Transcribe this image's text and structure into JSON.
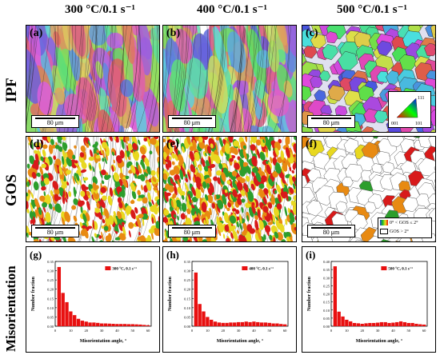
{
  "columns": [
    {
      "title": "300 °C/0.1 s⁻¹"
    },
    {
      "title": "400 °C/0.1 s⁻¹"
    },
    {
      "title": "500 °C/0.1 s⁻¹"
    }
  ],
  "rows": [
    {
      "label": "IPF"
    },
    {
      "label": "GOS"
    },
    {
      "label": "Misorientation"
    }
  ],
  "panels": {
    "ipf": [
      {
        "letter": "(a)",
        "scale": "80 μm"
      },
      {
        "letter": "(b)",
        "scale": "80 μm"
      },
      {
        "letter": "(c)",
        "scale": "80 μm",
        "triangle": {
          "top": "111",
          "left": "001",
          "right": "101"
        }
      }
    ],
    "gos": [
      {
        "letter": "(d)",
        "scale": "80 μm"
      },
      {
        "letter": "(e)",
        "scale": "80 μm"
      },
      {
        "letter": "(f)",
        "scale": "80 μm",
        "legend": {
          "row1": "0° < GOS ≤ 2°",
          "row2": "GOS > 2°"
        }
      }
    ]
  },
  "colors": {
    "bar": "#e81010",
    "gos_green": "#2c9e2c",
    "gos_orange": "#e88a12",
    "gos_red": "#d81a1a"
  },
  "chart_data": [
    {
      "type": "bar",
      "letter": "(g)",
      "legend": "300 °C, 0.1 s⁻¹",
      "xlabel": "Misorientation angle, °",
      "ylabel": "Number fraction",
      "ylim": [
        0,
        0.35
      ],
      "yticks": [
        "0.00",
        "0.05",
        "0.10",
        "0.15",
        "0.20",
        "0.25",
        "0.30",
        "0.35"
      ],
      "xlim": [
        0,
        62
      ],
      "xticks": [
        "0",
        "10",
        "20",
        "30",
        "40",
        "50",
        "60"
      ],
      "x": [
        2.5,
        5,
        7.5,
        10,
        12.5,
        15,
        17.5,
        20,
        22.5,
        25,
        27.5,
        30,
        32.5,
        35,
        37.5,
        40,
        42.5,
        45,
        47.5,
        50,
        52.5,
        55,
        57.5,
        60
      ],
      "values": [
        0.32,
        0.18,
        0.13,
        0.08,
        0.06,
        0.04,
        0.03,
        0.025,
        0.02,
        0.02,
        0.018,
        0.015,
        0.015,
        0.014,
        0.013,
        0.012,
        0.012,
        0.012,
        0.011,
        0.011,
        0.01,
        0.009,
        0.007,
        0.005
      ]
    },
    {
      "type": "bar",
      "letter": "(h)",
      "legend": "400 °C, 0.1 s⁻¹",
      "xlabel": "Misorientation angle, °",
      "ylabel": "Number fraction",
      "ylim": [
        0,
        0.35
      ],
      "yticks": [
        "0.00",
        "0.05",
        "0.10",
        "0.15",
        "0.20",
        "0.25",
        "0.30",
        "0.35"
      ],
      "xlim": [
        0,
        62
      ],
      "xticks": [
        "0",
        "10",
        "20",
        "30",
        "40",
        "50",
        "60"
      ],
      "x": [
        2.5,
        5,
        7.5,
        10,
        12.5,
        15,
        17.5,
        20,
        22.5,
        25,
        27.5,
        30,
        32.5,
        35,
        37.5,
        40,
        42.5,
        45,
        47.5,
        50,
        52.5,
        55,
        57.5,
        60
      ],
      "values": [
        0.29,
        0.12,
        0.08,
        0.05,
        0.035,
        0.025,
        0.02,
        0.018,
        0.018,
        0.02,
        0.02,
        0.022,
        0.022,
        0.025,
        0.022,
        0.025,
        0.022,
        0.02,
        0.02,
        0.018,
        0.015,
        0.015,
        0.012,
        0.01
      ]
    },
    {
      "type": "bar",
      "letter": "(i)",
      "legend": "500 °C, 0.1 s⁻¹",
      "xlabel": "Misorientation angle, °",
      "ylabel": "Number fraction",
      "ylim": [
        0,
        0.4
      ],
      "yticks": [
        "0.00",
        "0.05",
        "0.10",
        "0.15",
        "0.20",
        "0.25",
        "0.30",
        "0.35",
        "0.40"
      ],
      "xlim": [
        0,
        62
      ],
      "xticks": [
        "0",
        "10",
        "20",
        "30",
        "40",
        "50",
        "60"
      ],
      "x": [
        2.5,
        5,
        7.5,
        10,
        12.5,
        15,
        17.5,
        20,
        22.5,
        25,
        27.5,
        30,
        32.5,
        35,
        37.5,
        40,
        42.5,
        45,
        47.5,
        50,
        52.5,
        55,
        57.5,
        60
      ],
      "values": [
        0.37,
        0.09,
        0.06,
        0.04,
        0.03,
        0.02,
        0.018,
        0.015,
        0.018,
        0.02,
        0.02,
        0.022,
        0.025,
        0.025,
        0.02,
        0.022,
        0.025,
        0.03,
        0.025,
        0.02,
        0.02,
        0.015,
        0.012,
        0.01
      ]
    }
  ]
}
